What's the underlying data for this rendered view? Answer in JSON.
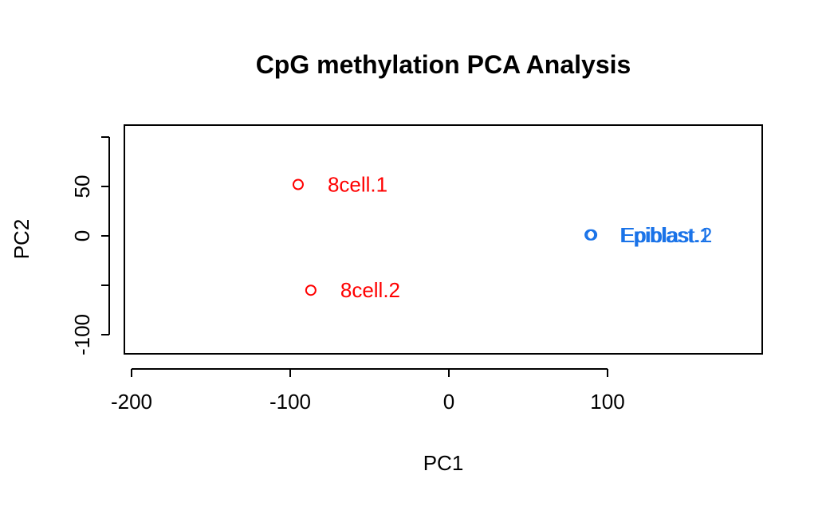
{
  "chart_data": {
    "type": "scatter",
    "title": "CpG methylation PCA Analysis",
    "xlabel": "PC1",
    "ylabel": "PC2",
    "xlim": [
      -200,
      200
    ],
    "ylim": [
      -120,
      100
    ],
    "xticks": [
      -200,
      -100,
      0,
      100
    ],
    "yticks": [
      -100,
      -50,
      0,
      50
    ],
    "ytick_labels": [
      "-100",
      "",
      "0",
      "50"
    ],
    "grid": false,
    "legend": "none",
    "points": [
      {
        "label": "8cell.1",
        "x": -95,
        "y": 52,
        "color": "#ff0000"
      },
      {
        "label": "8cell.2",
        "x": -87,
        "y": -55,
        "color": "#ff0000"
      },
      {
        "label": "Epiblast.1",
        "x": 89,
        "y": 1,
        "color": "#1a73e8"
      },
      {
        "label": "Epiblast.2",
        "x": 90,
        "y": 1,
        "color": "#1a73e8"
      }
    ]
  }
}
